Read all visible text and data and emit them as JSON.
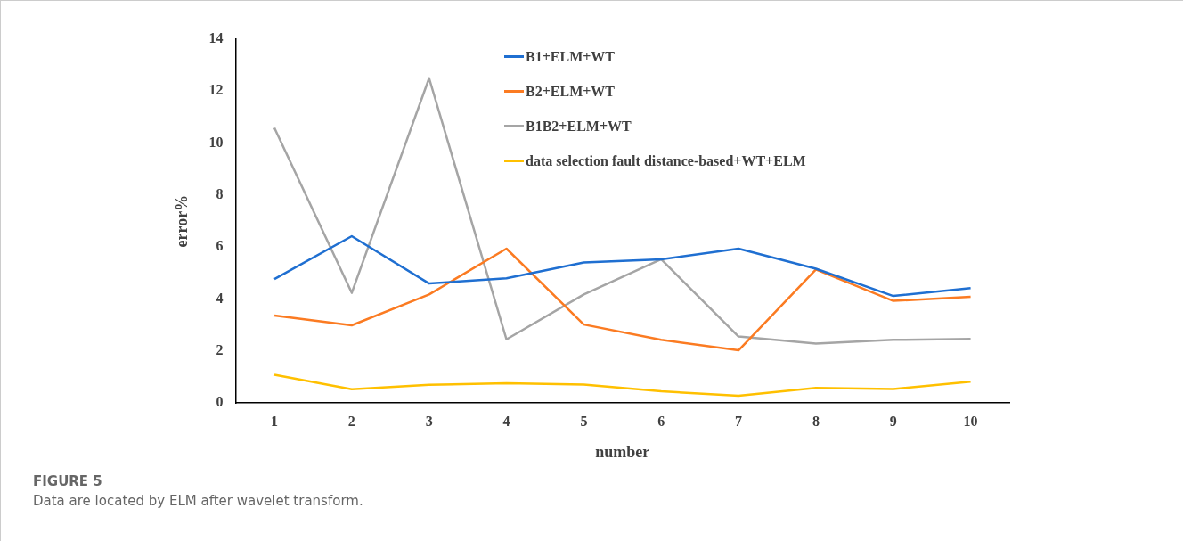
{
  "chart_data": {
    "type": "line",
    "xlabel": "number",
    "ylabel": "error%",
    "categories": [
      "1",
      "2",
      "3",
      "4",
      "5",
      "6",
      "7",
      "8",
      "9",
      "10"
    ],
    "ylim": [
      0,
      14
    ],
    "yticks": [
      0,
      2,
      4,
      6,
      8,
      10,
      12,
      14
    ],
    "grid": false,
    "legend": "top",
    "marker": "none",
    "line_style": "solid",
    "series": [
      {
        "name": "B1+ELM+WT",
        "color": "#1f6fd1",
        "values": [
          4.77,
          6.42,
          4.6,
          4.8,
          5.41,
          5.53,
          5.94,
          5.17,
          4.12,
          4.42
        ]
      },
      {
        "name": "B2+ELM+WT",
        "color": "#fb7b22",
        "values": [
          3.37,
          2.99,
          4.18,
          5.94,
          3.02,
          2.43,
          2.03,
          5.14,
          3.93,
          4.09
        ]
      },
      {
        "name": "B1B2+ELM+WT",
        "color": "#a5a5a5",
        "values": [
          10.59,
          4.24,
          12.5,
          2.45,
          4.18,
          5.53,
          2.56,
          2.29,
          2.43,
          2.47
        ]
      },
      {
        "name": "data selection fault distance-based+WT+ELM",
        "color": "#ffc000",
        "values": [
          1.09,
          0.53,
          0.7,
          0.76,
          0.71,
          0.45,
          0.28,
          0.58,
          0.54,
          0.82
        ]
      }
    ],
    "annotations": [
      "FIGURE 5",
      "Data are located by ELM after wavelet transform."
    ]
  }
}
